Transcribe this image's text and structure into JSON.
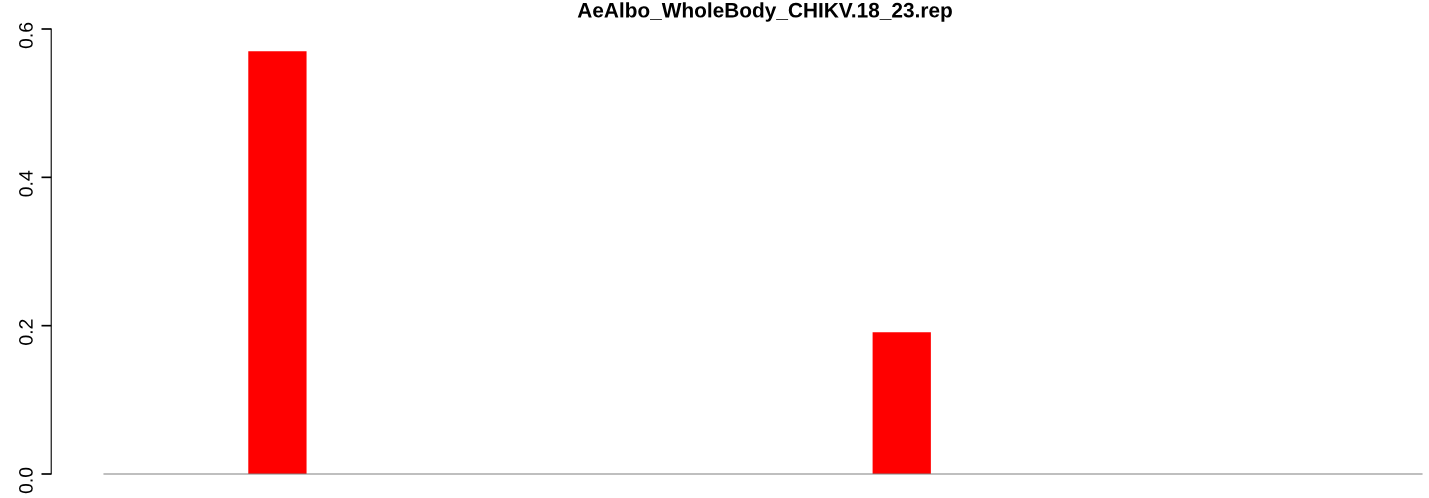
{
  "chart_data": {
    "type": "bar",
    "title": "AeAlbo_WholeBody_CHIKV.18_23.rep",
    "categories": [
      null,
      null,
      null,
      null,
      null,
      null,
      null,
      null,
      null,
      null,
      null,
      null,
      null,
      null,
      null,
      null,
      null,
      null,
      null
    ],
    "values": [
      0,
      0,
      0.57,
      0,
      0,
      0,
      0,
      0,
      0,
      0,
      0,
      0.191,
      0,
      0,
      0,
      0,
      0,
      0,
      0
    ],
    "color": "#ff0000",
    "ylim": [
      0,
      0.6
    ],
    "yticks": [
      {
        "value": 0,
        "label": "0.0"
      },
      0.2,
      0.4,
      0.6
    ],
    "tick_labels": "y",
    "grid": false,
    "legend": false
  }
}
